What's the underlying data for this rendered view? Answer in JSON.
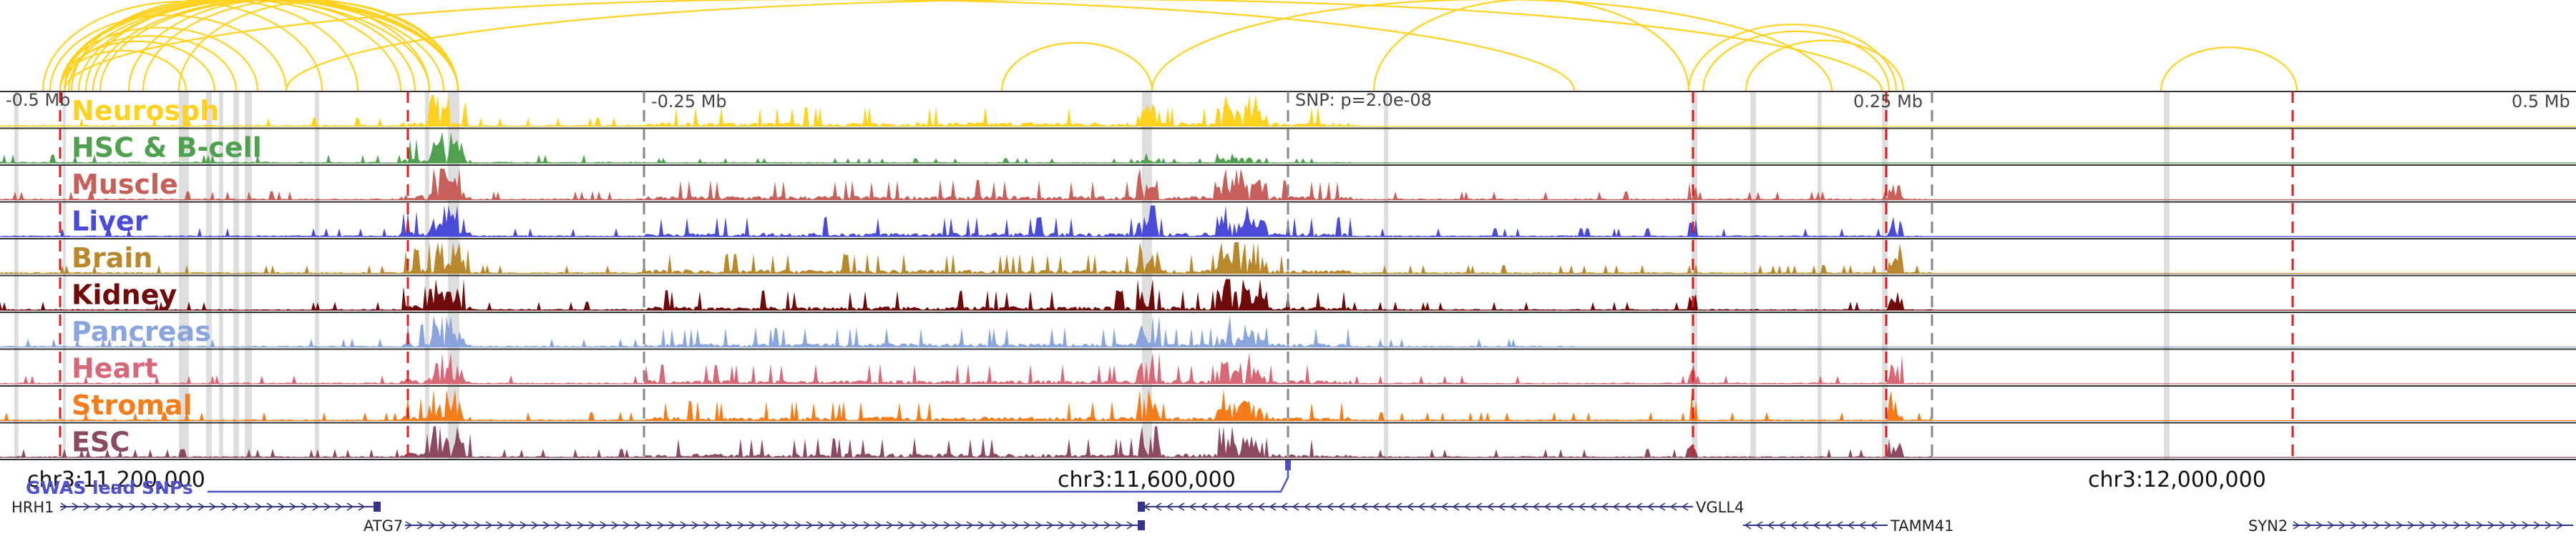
{
  "tracks": [
    {
      "name": "Neurosph",
      "color": "#FFD21F"
    },
    {
      "name": "HSC & B-cell",
      "color": "#4FA04F"
    },
    {
      "name": "Muscle",
      "color": "#C7605A"
    },
    {
      "name": "Liver",
      "color": "#4A4AD9"
    },
    {
      "name": "Brain",
      "color": "#B8892C"
    },
    {
      "name": "Kidney",
      "color": "#6E0A0A"
    },
    {
      "name": "Pancreas",
      "color": "#8AA4DE"
    },
    {
      "name": "Heart",
      "color": "#D66878"
    },
    {
      "name": "Stromal",
      "color": "#F57C1B"
    },
    {
      "name": "ESC",
      "color": "#8B4A5E"
    }
  ],
  "offset_labels": {
    "minus_half": "-0.5 Mb",
    "minus_quarter": "-0.25 Mb",
    "snp": "SNP: p=2.0e-08",
    "plus_quarter": "0.25 Mb",
    "plus_half": "0.5 Mb"
  },
  "coordinates": [
    "chr3:11,200,000",
    "chr3:11,600,000",
    "chr3:12,000,000"
  ],
  "gwas_label": "GWAS lead SNPs",
  "genes": [
    "HRH1",
    "ATG7",
    "VGLL4",
    "TAMM41",
    "SYN2"
  ],
  "colors": {
    "arc": "#FFD21F",
    "red_dashed": "#DD1C1C",
    "gray_dashed": "#888888",
    "gwas": "#5050C8",
    "gene": "#33338A"
  }
}
